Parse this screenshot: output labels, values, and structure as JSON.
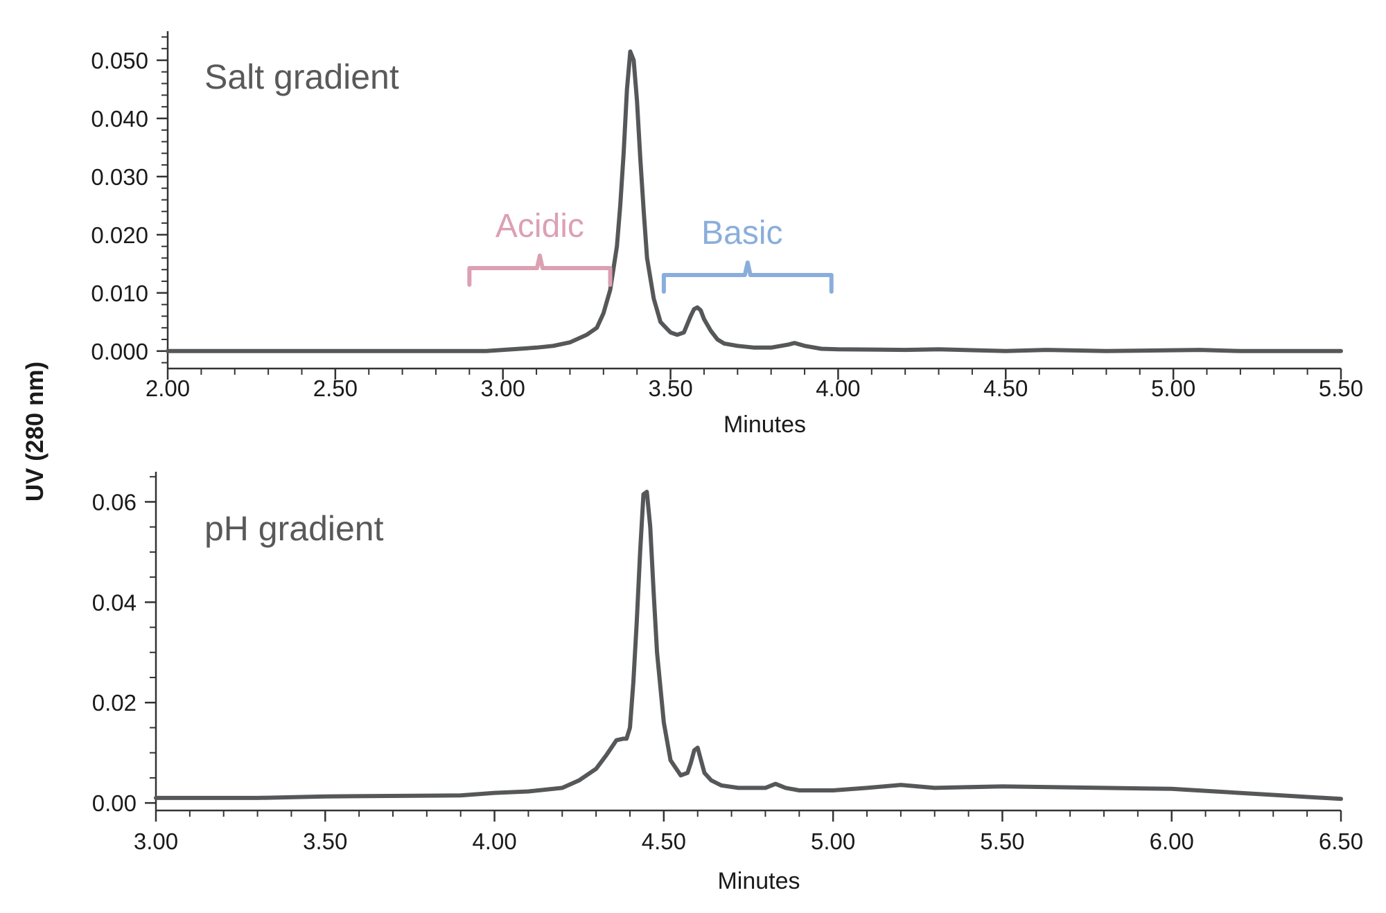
{
  "ylabel": "UV (280 nm)",
  "colors": {
    "trace": "#555759",
    "axis": "#333333",
    "acidic": "#dca0b3",
    "basic": "#8aaedb"
  },
  "chart_data": [
    {
      "type": "line",
      "panel_label": "Salt gradient",
      "xlabel": "Minutes",
      "xlim": [
        2.0,
        5.5
      ],
      "ylim": [
        -0.003,
        0.055
      ],
      "xticks": [
        "2.00",
        "2.50",
        "3.00",
        "3.50",
        "4.00",
        "4.50",
        "5.00",
        "5.50"
      ],
      "xtick_values": [
        2.0,
        2.5,
        3.0,
        3.5,
        4.0,
        4.5,
        5.0,
        5.5
      ],
      "yticks": [
        "0.000",
        "0.010",
        "0.020",
        "0.030",
        "0.040",
        "0.050"
      ],
      "ytick_values": [
        0.0,
        0.01,
        0.02,
        0.03,
        0.04,
        0.05
      ],
      "annotations": [
        {
          "text": "Acidic",
          "x_range": [
            2.9,
            3.32
          ],
          "color": "acidic"
        },
        {
          "text": "Basic",
          "x_range": [
            3.48,
            3.98
          ],
          "color": "basic"
        }
      ],
      "series": [
        {
          "x": [
            2.0,
            2.5,
            2.95,
            3.0,
            3.05,
            3.1,
            3.15,
            3.2,
            3.25,
            3.28,
            3.3,
            3.32,
            3.34,
            3.35,
            3.36,
            3.37,
            3.38,
            3.39,
            3.4,
            3.41,
            3.42,
            3.43,
            3.45,
            3.47,
            3.49,
            3.5,
            3.52,
            3.54,
            3.56,
            3.57,
            3.58,
            3.59,
            3.6,
            3.62,
            3.64,
            3.66,
            3.7,
            3.75,
            3.8,
            3.85,
            3.87,
            3.9,
            3.95,
            4.0,
            4.2,
            4.3,
            4.5,
            4.62,
            4.8,
            5.08,
            5.2,
            5.35,
            5.5
          ],
          "y": [
            0.0,
            0.0,
            0.0,
            0.0002,
            0.0004,
            0.0006,
            0.0009,
            0.0015,
            0.0028,
            0.004,
            0.0065,
            0.0105,
            0.018,
            0.025,
            0.034,
            0.045,
            0.0515,
            0.05,
            0.043,
            0.033,
            0.024,
            0.016,
            0.009,
            0.005,
            0.0038,
            0.0032,
            0.0028,
            0.0032,
            0.006,
            0.0072,
            0.0075,
            0.007,
            0.0055,
            0.0035,
            0.002,
            0.0013,
            0.0009,
            0.0006,
            0.0006,
            0.0011,
            0.0014,
            0.0009,
            0.0004,
            0.0003,
            0.0002,
            0.0003,
            0.0,
            0.0002,
            0.0,
            0.0002,
            0.0,
            0.0,
            0.0
          ]
        }
      ]
    },
    {
      "type": "line",
      "panel_label": "pH gradient",
      "xlabel": "Minutes",
      "xlim": [
        3.0,
        6.5
      ],
      "ylim": [
        -0.0015,
        0.066
      ],
      "xticks": [
        "3.00",
        "3.50",
        "4.00",
        "4.50",
        "5.00",
        "5.50",
        "6.00",
        "6.50"
      ],
      "xtick_values": [
        3.0,
        3.5,
        4.0,
        4.5,
        5.0,
        5.5,
        6.0,
        6.5
      ],
      "yticks": [
        "0.00",
        "0.02",
        "0.04",
        "0.06"
      ],
      "ytick_values": [
        0.0,
        0.02,
        0.04,
        0.06
      ],
      "series": [
        {
          "x": [
            3.0,
            3.3,
            3.5,
            3.9,
            4.0,
            4.1,
            4.2,
            4.25,
            4.3,
            4.33,
            4.36,
            4.38,
            4.39,
            4.4,
            4.41,
            4.42,
            4.43,
            4.44,
            4.45,
            4.46,
            4.47,
            4.48,
            4.5,
            4.52,
            4.55,
            4.57,
            4.58,
            4.59,
            4.6,
            4.61,
            4.62,
            4.64,
            4.67,
            4.72,
            4.8,
            4.83,
            4.86,
            4.9,
            5.0,
            5.1,
            5.2,
            5.3,
            5.5,
            5.8,
            6.0,
            6.2,
            6.5
          ],
          "y": [
            0.001,
            0.001,
            0.0013,
            0.0015,
            0.002,
            0.0023,
            0.003,
            0.0045,
            0.0068,
            0.0095,
            0.0125,
            0.0128,
            0.0128,
            0.015,
            0.024,
            0.036,
            0.05,
            0.0615,
            0.062,
            0.055,
            0.042,
            0.03,
            0.016,
            0.0085,
            0.0055,
            0.006,
            0.008,
            0.0105,
            0.011,
            0.0085,
            0.006,
            0.0045,
            0.0035,
            0.003,
            0.003,
            0.0038,
            0.003,
            0.0025,
            0.0025,
            0.003,
            0.0036,
            0.003,
            0.0033,
            0.003,
            0.0028,
            0.002,
            0.0008
          ]
        }
      ]
    }
  ]
}
